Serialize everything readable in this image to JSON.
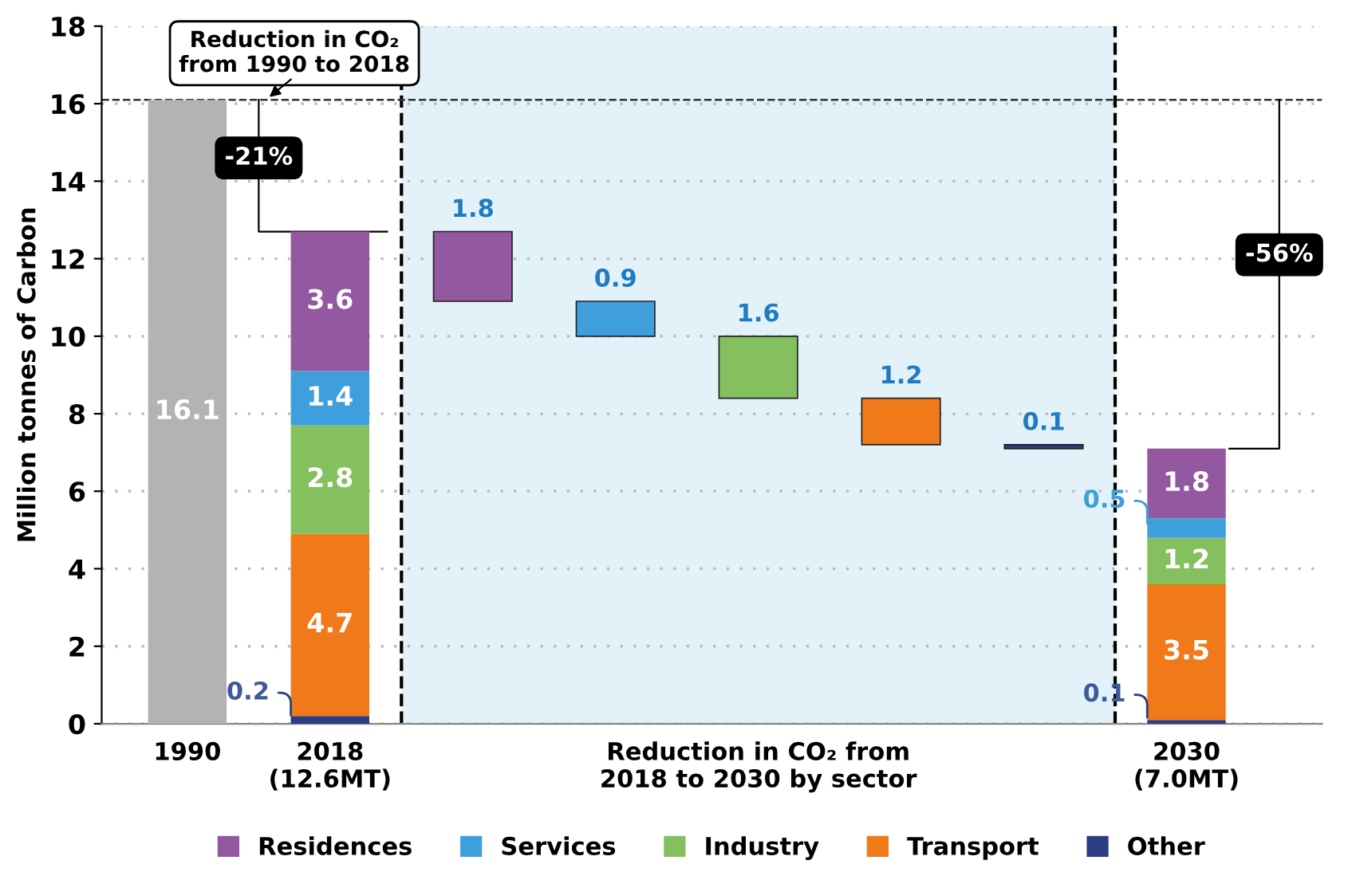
{
  "chart_data": {
    "type": "bar",
    "stacked": true,
    "ylabel": "Million tonnes of Carbon",
    "categories": [
      "1990",
      "2018\n(12.6MT)",
      null,
      null,
      "Reduction in CO₂ from\n2018 to 2030 by sector",
      null,
      null,
      "2030\n(7.0MT)"
    ],
    "series": [
      {
        "color": "#b3b3b3",
        "values": [
          16.1,
          null,
          null,
          null,
          null,
          null,
          null,
          null
        ]
      },
      {
        "name": "Other",
        "color": "#2b3d80",
        "values": [
          null,
          0.2,
          null,
          null,
          null,
          null,
          0.1,
          0.1
        ],
        "base": [
          null,
          null,
          null,
          null,
          null,
          null,
          7.1,
          null
        ]
      },
      {
        "name": "Transport",
        "color": "#f07a1a",
        "values": [
          null,
          4.7,
          null,
          null,
          null,
          1.2,
          null,
          3.5
        ],
        "base": [
          null,
          null,
          null,
          null,
          null,
          7.2,
          null,
          null
        ]
      },
      {
        "name": "Industry",
        "color": "#85c05e",
        "values": [
          null,
          2.8,
          null,
          null,
          1.6,
          null,
          null,
          1.2
        ],
        "base": [
          null,
          null,
          null,
          null,
          8.4,
          null,
          null,
          null
        ]
      },
      {
        "name": "Services",
        "color": "#3e9fdc",
        "values": [
          null,
          1.4,
          null,
          0.9,
          null,
          null,
          null,
          0.5
        ],
        "base": [
          null,
          null,
          null,
          10.0,
          null,
          null,
          null,
          null
        ]
      },
      {
        "name": "Residences",
        "color": "#93589f",
        "values": [
          null,
          3.6,
          1.8,
          null,
          null,
          null,
          null,
          1.8
        ],
        "base": [
          null,
          null,
          10.9,
          null,
          null,
          null,
          null,
          null
        ]
      }
    ],
    "data_labels": true,
    "ylim": [
      0,
      18
    ],
    "yticks": [
      0,
      2,
      4,
      6,
      8,
      10,
      12,
      14,
      16,
      18
    ],
    "grid": "y",
    "legend": "bottom",
    "ref_lines": [
      {
        "axis": "y",
        "value": 16.1,
        "line_style": "dashed",
        "color": "#333333"
      }
    ],
    "annotations": [
      "Reduction in CO₂\nfrom 1990 to 2018",
      "-21%",
      "-56%"
    ]
  }
}
